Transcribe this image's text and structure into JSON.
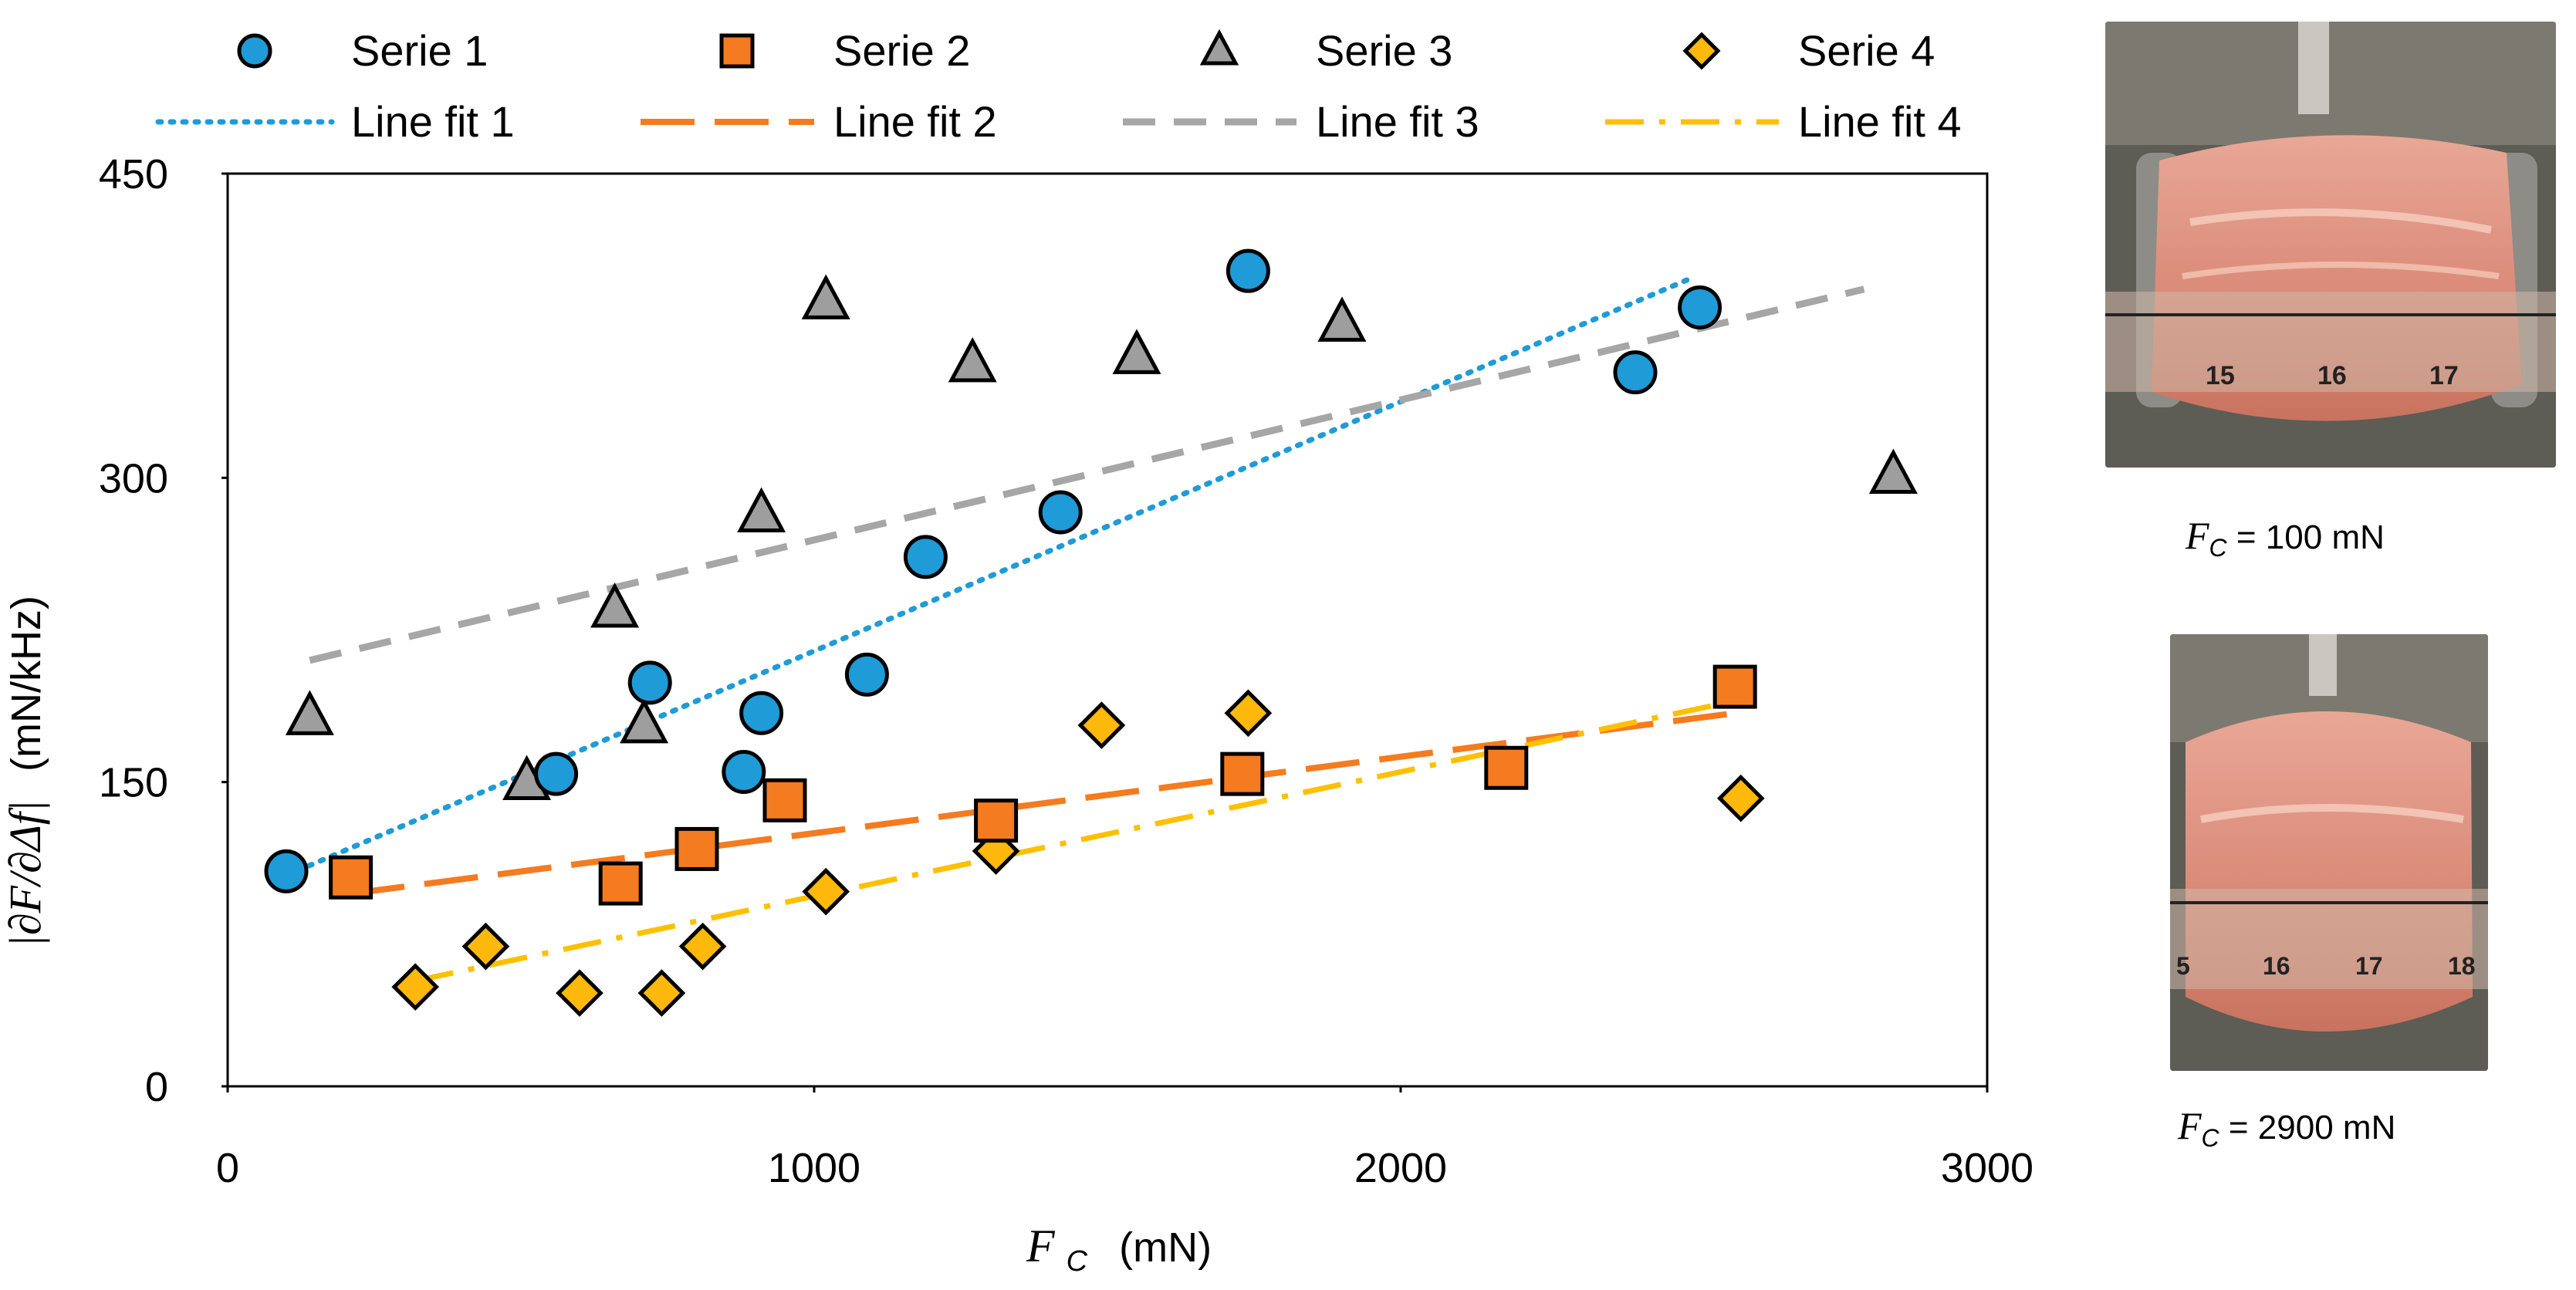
{
  "chart_data": {
    "type": "scatter",
    "xlabel_symbol": "F",
    "xlabel_sub": "C",
    "xlabel_unit": "(mN)",
    "ylabel_expr": "|∂F/∂Δf|",
    "ylabel_unit": "(mN/kHz)",
    "xlim": [
      0,
      3000
    ],
    "ylim": [
      0,
      450
    ],
    "xticks": [
      0,
      1000,
      2000,
      3000
    ],
    "yticks": [
      0,
      150,
      300,
      450
    ],
    "xtick_labels": [
      "0",
      "1000",
      "2000",
      "3000"
    ],
    "ytick_labels": [
      "0",
      "150",
      "300",
      "450"
    ],
    "legend_position": "top",
    "series": [
      {
        "name": "Serie 1",
        "marker": "circle",
        "color": "#1F9BD7",
        "x": [
          100,
          560,
          720,
          880,
          910,
          1090,
          1190,
          1420,
          1740,
          2400,
          2510
        ],
        "y": [
          106,
          154,
          199,
          155,
          184,
          203,
          261,
          283,
          402,
          352,
          384
        ]
      },
      {
        "name": "Serie 2",
        "marker": "square",
        "color": "#F47B20",
        "x": [
          210,
          670,
          800,
          950,
          1310,
          1730,
          2180,
          2570
        ],
        "y": [
          103,
          100,
          117,
          141,
          131,
          154,
          157,
          197
        ]
      },
      {
        "name": "Serie 3",
        "marker": "triangle",
        "color": "#9E9E9E",
        "x": [
          140,
          510,
          660,
          710,
          910,
          1020,
          1270,
          1550,
          1900,
          2840
        ],
        "y": [
          182,
          150,
          235,
          178,
          282,
          387,
          356,
          360,
          376,
          301
        ]
      },
      {
        "name": "Serie 4",
        "marker": "diamond",
        "color": "#FFB80C",
        "x": [
          320,
          440,
          600,
          740,
          810,
          1020,
          1310,
          1490,
          1740,
          2580
        ],
        "y": [
          49,
          69,
          46,
          46,
          69,
          96,
          116,
          178,
          184,
          142
        ]
      }
    ],
    "fits": [
      {
        "name": "Line fit 1",
        "style": "dotted",
        "color": "#1F9BD7",
        "x": [
          100,
          2500
        ],
        "y": [
          104,
          399
        ]
      },
      {
        "name": "Line fit 2",
        "style": "longdash",
        "color": "#F47B20",
        "x": [
          210,
          2570
        ],
        "y": [
          95,
          184
        ]
      },
      {
        "name": "Line fit 3",
        "style": "dash",
        "color": "#A6A6A6",
        "x": [
          140,
          2790
        ],
        "y": [
          210,
          393
        ]
      },
      {
        "name": "Line fit 4",
        "style": "dashdot",
        "color": "#FFC000",
        "x": [
          320,
          2570
        ],
        "y": [
          52,
          190
        ]
      }
    ]
  },
  "photos": [
    {
      "caption_symbol": "F",
      "caption_sub": "C",
      "caption_value": "= 100 mN",
      "ruler_labels": [
        "15",
        "16",
        "17"
      ]
    },
    {
      "caption_symbol": "F",
      "caption_sub": "C",
      "caption_value": "= 2900 mN",
      "ruler_labels": [
        "5",
        "16",
        "17",
        "18"
      ]
    }
  ]
}
